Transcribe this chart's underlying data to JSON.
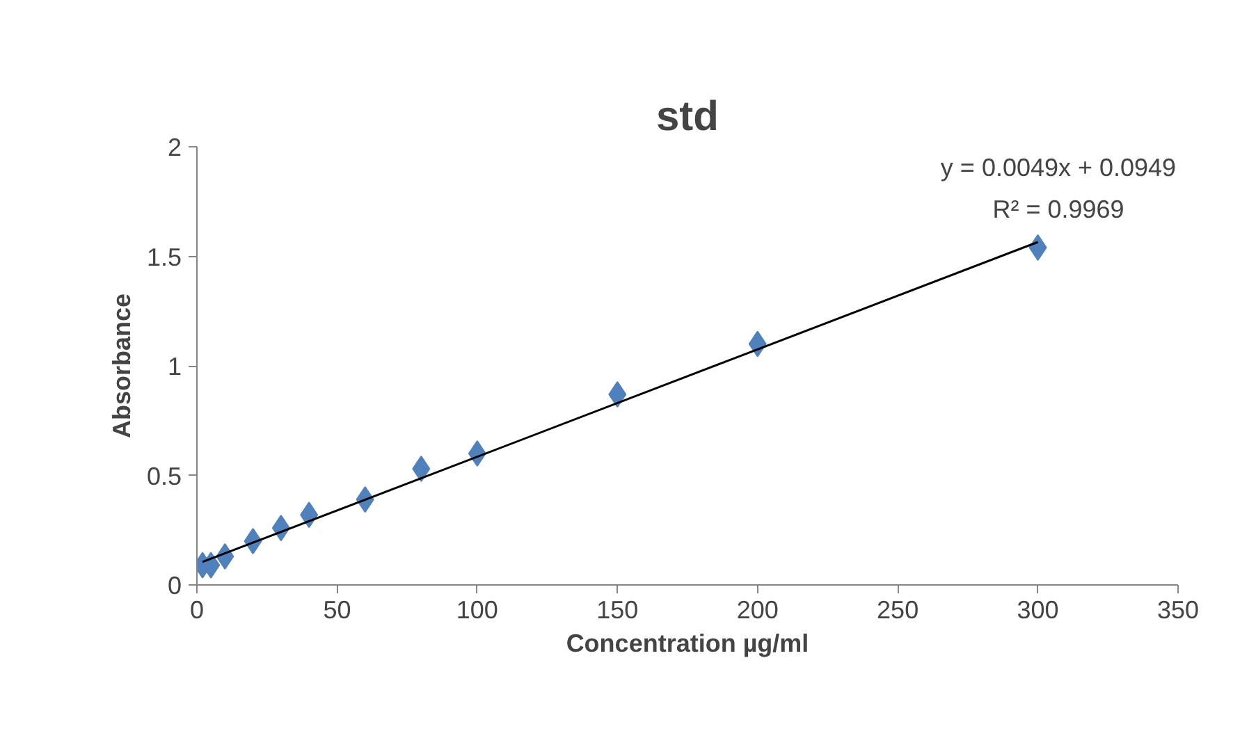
{
  "chart_data": {
    "type": "scatter",
    "title": "std",
    "xlabel": "Concentration µg/ml",
    "ylabel": "Absorbance",
    "xlim": [
      0,
      350
    ],
    "xticks": [
      0,
      50,
      100,
      150,
      200,
      250,
      300,
      350
    ],
    "ylim": [
      0,
      2
    ],
    "yticks": [
      0,
      0.5,
      1,
      1.5,
      2
    ],
    "grid": false,
    "series": [
      {
        "marker": "diamond",
        "color": "#4f81bd",
        "x": [
          2,
          5,
          10,
          20,
          30,
          40,
          60,
          80,
          100,
          150,
          200,
          300
        ],
        "values": [
          0.09,
          0.09,
          0.13,
          0.2,
          0.26,
          0.32,
          0.39,
          0.53,
          0.6,
          0.87,
          1.1,
          1.54
        ]
      },
      {
        "type": "line",
        "color": "#000000",
        "line_style": "solid",
        "x": [
          2,
          300
        ],
        "values": [
          0.105,
          1.565
        ]
      }
    ],
    "annotations": [
      "y = 0.0049x + 0.0949",
      "R² = 0.9969"
    ]
  }
}
